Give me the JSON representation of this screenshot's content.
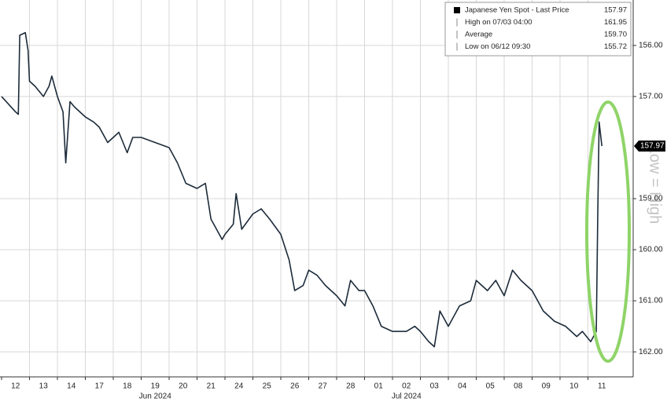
{
  "chart_data": {
    "type": "line",
    "categories": [
      "12",
      "13",
      "14",
      "17",
      "18",
      "19",
      "20",
      "21",
      "24",
      "25",
      "26",
      "27",
      "28",
      "01",
      "02",
      "03",
      "04",
      "05",
      "08",
      "09",
      "10",
      "11"
    ],
    "months": [
      {
        "label": "Jun 2024",
        "at": 5.5
      },
      {
        "label": "Jul 2024",
        "at": 14.5
      }
    ],
    "x": [
      0,
      0.5,
      0.6,
      0.65,
      0.85,
      0.95,
      1.0,
      1.2,
      1.5,
      1.7,
      1.8,
      2.0,
      2.2,
      2.3,
      2.45,
      2.6,
      3.0,
      3.3,
      3.5,
      3.8,
      4.0,
      4.2,
      4.5,
      4.7,
      5.0,
      5.5,
      6.0,
      6.3,
      6.6,
      7.0,
      7.3,
      7.5,
      7.9,
      8.0,
      8.3,
      8.4,
      8.6,
      9.0,
      9.3,
      9.6,
      10.0,
      10.3,
      10.5,
      10.8,
      11.0,
      11.3,
      11.6,
      12.0,
      12.3,
      12.5,
      12.8,
      13.0,
      13.3,
      13.6,
      14.0,
      14.5,
      14.8,
      15.0,
      15.3,
      15.5,
      15.7,
      16.0,
      16.4,
      16.8,
      17.0,
      17.4,
      17.7,
      18.0,
      18.3,
      18.6,
      19.0,
      19.4,
      19.8,
      20.2,
      20.6,
      20.8,
      21.1,
      21.3,
      21.35,
      21.4,
      21.5
    ],
    "series": [
      {
        "name": "Japanese Yen Spot - Last Price",
        "color": "#1c2b3a",
        "values": [
          157.0,
          157.3,
          157.35,
          155.8,
          155.75,
          156.1,
          156.7,
          156.8,
          157.0,
          156.8,
          156.6,
          157.0,
          157.3,
          158.3,
          157.1,
          157.2,
          157.4,
          157.5,
          157.6,
          157.9,
          157.8,
          157.7,
          158.1,
          157.8,
          157.8,
          157.9,
          158.0,
          158.3,
          158.7,
          158.8,
          158.7,
          159.4,
          159.8,
          159.7,
          159.5,
          158.9,
          159.6,
          159.3,
          159.2,
          159.4,
          159.7,
          160.2,
          160.8,
          160.7,
          160.4,
          160.5,
          160.7,
          160.9,
          161.1,
          160.6,
          160.8,
          160.8,
          161.1,
          161.5,
          161.6,
          161.6,
          161.5,
          161.6,
          161.8,
          161.9,
          161.2,
          161.5,
          161.1,
          161.0,
          160.6,
          160.8,
          160.6,
          160.9,
          160.4,
          160.6,
          160.8,
          161.2,
          161.4,
          161.5,
          161.7,
          161.6,
          161.8,
          161.6,
          159.4,
          157.5,
          157.97
        ]
      }
    ],
    "xlim": [
      -0.056,
      22.62
    ],
    "ylim": [
      155.11,
      162.49
    ],
    "inverted": true,
    "yticks": [
      {
        "value": 156,
        "label": "156.00"
      },
      {
        "value": 157,
        "label": "157.00"
      },
      {
        "value": 159,
        "label": "159.00"
      },
      {
        "value": 160,
        "label": "160.00"
      },
      {
        "value": 161,
        "label": "161.00"
      },
      {
        "value": 162,
        "label": "162.00"
      }
    ],
    "grid": true,
    "legend": [
      {
        "name": "Japanese Yen Spot - Last Price",
        "value": 157.97,
        "label": "157.97"
      },
      {
        "name": "High on 07/03 04:00",
        "value": 161.95,
        "label": "161.95"
      },
      {
        "name": "Average",
        "value": 159.7,
        "label": "159.70"
      },
      {
        "name": "Low on 06/12 09:30",
        "value": 155.72,
        "label": "155.72"
      }
    ],
    "watermark": "Low = High"
  }
}
